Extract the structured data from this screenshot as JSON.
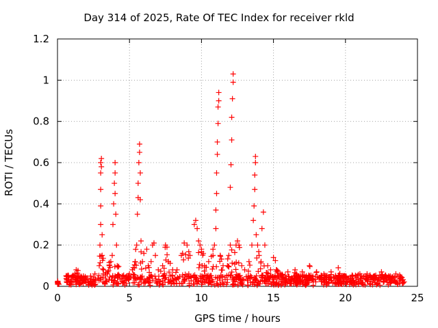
{
  "chart_data": {
    "type": "scatter",
    "title": "Day 314 of 2025, Rate Of TEC Index for receiver rkld",
    "xlabel": "GPS time / hours",
    "ylabel": "ROTI / TECUs",
    "xlim": [
      0,
      25
    ],
    "ylim": [
      0,
      1.2
    ],
    "xticks": [
      "0",
      "5",
      "10",
      "15",
      "20",
      "25"
    ],
    "yticks": [
      "0",
      "0.2",
      "0.4",
      "0.6",
      "0.8",
      "1",
      "1.2"
    ],
    "grid": true,
    "marker": "+",
    "color": "#ff0000",
    "series": [
      {
        "points": [
          [
            0.0,
            0.02
          ],
          [
            0.05,
            0.015
          ],
          [
            0.1,
            0.01
          ],
          [
            0.7,
            0.02
          ],
          [
            0.8,
            0.03
          ],
          [
            0.9,
            0.025
          ],
          [
            1.0,
            0.02
          ],
          [
            1.2,
            0.06
          ],
          [
            1.3,
            0.08
          ],
          [
            1.4,
            0.05
          ],
          [
            1.6,
            0.04
          ],
          [
            1.8,
            0.05
          ],
          [
            2.0,
            0.04
          ],
          [
            2.3,
            0.05
          ],
          [
            2.6,
            0.06
          ],
          [
            2.9,
            0.1
          ],
          [
            2.95,
            0.2
          ],
          [
            3.0,
            0.3
          ],
          [
            3.0,
            0.39
          ],
          [
            3.0,
            0.47
          ],
          [
            3.0,
            0.55
          ],
          [
            3.0,
            0.6
          ],
          [
            3.05,
            0.62
          ],
          [
            3.05,
            0.58
          ],
          [
            3.1,
            0.25
          ],
          [
            3.1,
            0.15
          ],
          [
            3.2,
            0.08
          ],
          [
            3.5,
            0.07
          ],
          [
            3.6,
            0.1
          ],
          [
            3.7,
            0.12
          ],
          [
            3.8,
            0.15
          ],
          [
            3.85,
            0.3
          ],
          [
            3.9,
            0.4
          ],
          [
            3.95,
            0.5
          ],
          [
            4.0,
            0.55
          ],
          [
            4.0,
            0.6
          ],
          [
            4.0,
            0.45
          ],
          [
            4.05,
            0.35
          ],
          [
            4.1,
            0.2
          ],
          [
            4.15,
            0.1
          ],
          [
            4.5,
            0.05
          ],
          [
            4.8,
            0.05
          ],
          [
            5.0,
            0.06
          ],
          [
            5.2,
            0.08
          ],
          [
            5.4,
            0.12
          ],
          [
            5.5,
            0.2
          ],
          [
            5.55,
            0.35
          ],
          [
            5.6,
            0.43
          ],
          [
            5.6,
            0.5
          ],
          [
            5.65,
            0.6
          ],
          [
            5.7,
            0.65
          ],
          [
            5.7,
            0.69
          ],
          [
            5.75,
            0.55
          ],
          [
            5.75,
            0.42
          ],
          [
            5.8,
            0.22
          ],
          [
            5.9,
            0.12
          ],
          [
            6.0,
            0.16
          ],
          [
            6.2,
            0.18
          ],
          [
            6.3,
            0.1
          ],
          [
            6.5,
            0.12
          ],
          [
            6.6,
            0.2
          ],
          [
            6.7,
            0.21
          ],
          [
            6.8,
            0.15
          ],
          [
            7.0,
            0.08
          ],
          [
            7.3,
            0.1
          ],
          [
            7.5,
            0.2
          ],
          [
            7.6,
            0.19
          ],
          [
            7.7,
            0.12
          ],
          [
            8.0,
            0.08
          ],
          [
            8.3,
            0.08
          ],
          [
            8.6,
            0.15
          ],
          [
            8.8,
            0.21
          ],
          [
            9.0,
            0.2
          ],
          [
            9.2,
            0.15
          ],
          [
            9.5,
            0.3
          ],
          [
            9.6,
            0.32
          ],
          [
            9.7,
            0.28
          ],
          [
            9.8,
            0.22
          ],
          [
            9.9,
            0.2
          ],
          [
            10.0,
            0.18
          ],
          [
            10.2,
            0.1
          ],
          [
            10.5,
            0.12
          ],
          [
            10.8,
            0.15
          ],
          [
            10.9,
            0.2
          ],
          [
            11.0,
            0.28
          ],
          [
            11.0,
            0.37
          ],
          [
            11.05,
            0.45
          ],
          [
            11.05,
            0.55
          ],
          [
            11.1,
            0.64
          ],
          [
            11.1,
            0.7
          ],
          [
            11.15,
            0.79
          ],
          [
            11.15,
            0.87
          ],
          [
            11.2,
            0.94
          ],
          [
            11.2,
            0.9
          ],
          [
            11.3,
            0.15
          ],
          [
            11.5,
            0.1
          ],
          [
            11.8,
            0.1
          ],
          [
            11.9,
            0.15
          ],
          [
            12.0,
            0.2
          ],
          [
            12.0,
            0.48
          ],
          [
            12.05,
            0.59
          ],
          [
            12.1,
            0.71
          ],
          [
            12.1,
            0.82
          ],
          [
            12.15,
            0.91
          ],
          [
            12.2,
            0.99
          ],
          [
            12.2,
            1.03
          ],
          [
            12.4,
            0.2
          ],
          [
            12.5,
            0.22
          ],
          [
            12.8,
            0.1
          ],
          [
            13.0,
            0.08
          ],
          [
            13.3,
            0.12
          ],
          [
            13.5,
            0.2
          ],
          [
            13.6,
            0.32
          ],
          [
            13.65,
            0.39
          ],
          [
            13.7,
            0.47
          ],
          [
            13.7,
            0.54
          ],
          [
            13.75,
            0.6
          ],
          [
            13.75,
            0.63
          ],
          [
            13.8,
            0.25
          ],
          [
            13.9,
            0.2
          ],
          [
            14.0,
            0.15
          ],
          [
            14.2,
            0.28
          ],
          [
            14.3,
            0.36
          ],
          [
            14.4,
            0.2
          ],
          [
            14.6,
            0.1
          ],
          [
            14.8,
            0.08
          ],
          [
            15.0,
            0.14
          ],
          [
            15.2,
            0.08
          ],
          [
            15.5,
            0.06
          ],
          [
            16.0,
            0.07
          ],
          [
            16.5,
            0.08
          ],
          [
            17.0,
            0.07
          ],
          [
            17.5,
            0.1
          ],
          [
            18.0,
            0.07
          ],
          [
            18.5,
            0.06
          ],
          [
            19.0,
            0.07
          ],
          [
            19.5,
            0.09
          ],
          [
            20.0,
            0.05
          ],
          [
            20.5,
            0.05
          ],
          [
            21.0,
            0.06
          ],
          [
            21.5,
            0.06
          ],
          [
            22.0,
            0.05
          ],
          [
            22.5,
            0.07
          ],
          [
            23.0,
            0.05
          ],
          [
            23.5,
            0.06
          ],
          [
            23.8,
            0.04
          ],
          [
            24.0,
            0.02
          ]
        ]
      }
    ]
  }
}
